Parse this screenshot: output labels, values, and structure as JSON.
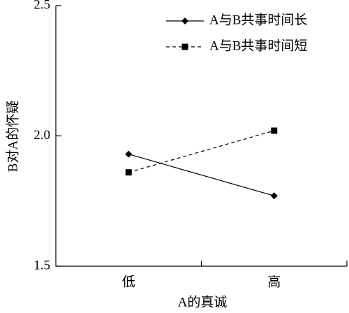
{
  "chart_data": {
    "type": "line",
    "x_label": "A的真诚",
    "y_label": "B对A的怀疑",
    "categories": [
      "低",
      "高"
    ],
    "series": [
      {
        "name": "A与B共事时间长",
        "color": "#000000",
        "line_style": "solid",
        "marker": "diamond",
        "values": [
          1.93,
          1.77
        ]
      },
      {
        "name": "A与B共事时间短",
        "color": "#000000",
        "line_style": "dashed",
        "marker": "square",
        "values": [
          1.86,
          2.02
        ]
      }
    ],
    "ylim": [
      1.5,
      2.5
    ],
    "yticks": [
      1.5,
      {
        "value": 2,
        "label": "2.0"
      },
      2.5
    ],
    "grid": false,
    "legend": "upper right"
  }
}
